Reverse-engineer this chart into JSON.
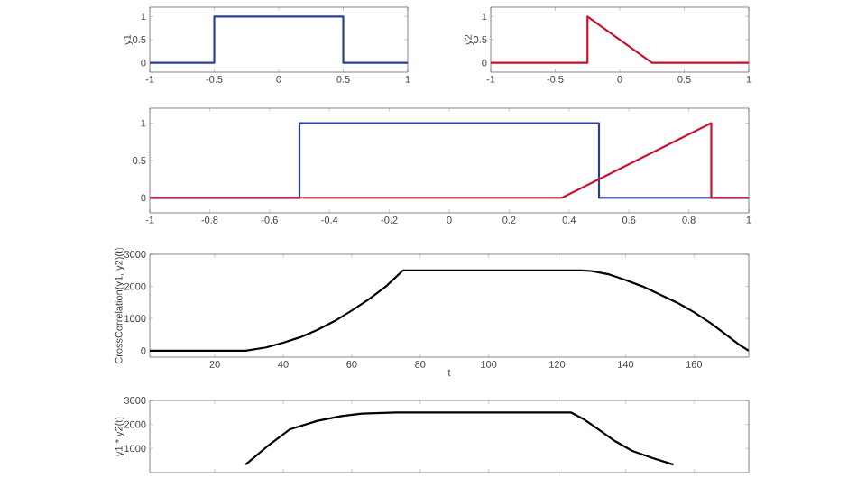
{
  "chart_data": [
    {
      "type": "line",
      "ylabel": "y1",
      "xlim": [
        -1,
        1
      ],
      "ylim": [
        -0.2,
        1.2
      ],
      "xticks": [
        -1,
        -0.5,
        0,
        0.5,
        1
      ],
      "yticks": [
        0,
        0.5,
        1
      ],
      "series": [
        {
          "color": "#2a3f9a",
          "x": [
            -1,
            -0.5,
            -0.5,
            0.5,
            0.5,
            1
          ],
          "values": [
            0,
            0,
            1,
            1,
            0,
            0
          ]
        }
      ]
    },
    {
      "type": "line",
      "ylabel": "y2",
      "xlim": [
        -1,
        1
      ],
      "ylim": [
        -0.2,
        1.2
      ],
      "xticks": [
        -1,
        -0.5,
        0,
        0.5,
        1
      ],
      "yticks": [
        0,
        0.5,
        1
      ],
      "series": [
        {
          "color": "#c4122f",
          "x": [
            -1,
            -0.25,
            -0.25,
            0.25,
            1
          ],
          "values": [
            0,
            0,
            1,
            0,
            0
          ]
        }
      ]
    },
    {
      "type": "line",
      "xlim": [
        -1,
        1
      ],
      "ylim": [
        -0.2,
        1.2
      ],
      "xticks": [
        -1,
        -0.8,
        -0.6,
        -0.4,
        -0.2,
        0,
        0.2,
        0.4,
        0.6,
        0.8,
        1
      ],
      "yticks": [
        0,
        0.5,
        1
      ],
      "series": [
        {
          "color": "#2a3f9a",
          "x": [
            -1,
            -0.5,
            -0.5,
            0.5,
            0.5,
            1
          ],
          "values": [
            0,
            0,
            1,
            1,
            0,
            0
          ]
        },
        {
          "color": "#c4122f",
          "x": [
            -1,
            0.375,
            0.875,
            0.875,
            1
          ],
          "values": [
            0,
            0,
            1,
            0,
            0
          ]
        }
      ]
    },
    {
      "type": "line",
      "xlabel": "t",
      "ylabel": "CrossCorrelation(y1, y2)(t)",
      "xlim": [
        1,
        176
      ],
      "ylim": [
        -200,
        3000
      ],
      "xticks": [
        20,
        40,
        60,
        80,
        100,
        120,
        140,
        160
      ],
      "yticks": [
        0,
        1000,
        2000,
        3000
      ],
      "series": [
        {
          "color": "#000000",
          "x": [
            1,
            29,
            35,
            40,
            45,
            50,
            55,
            60,
            65,
            70,
            75,
            127,
            130,
            135,
            140,
            145,
            150,
            155,
            160,
            165,
            170,
            173,
            176
          ],
          "values": [
            0,
            0,
            100,
            250,
            420,
            650,
            920,
            1250,
            1600,
            2000,
            2500,
            2500,
            2480,
            2380,
            2200,
            2000,
            1750,
            1500,
            1200,
            850,
            450,
            200,
            0
          ]
        }
      ]
    },
    {
      "type": "line",
      "ylabel": "y1 * y2(t)",
      "tick_labels": "y",
      "xlim": [
        1,
        176
      ],
      "ylim": [
        0,
        3000
      ],
      "xticks": [
        20,
        40,
        60,
        80,
        100,
        120,
        140,
        160
      ],
      "yticks": [
        1000,
        2000,
        3000
      ],
      "series": [
        {
          "color": "#000000",
          "x": [
            29,
            35,
            42,
            50,
            57,
            63,
            73,
            124,
            128,
            132,
            137,
            142,
            148,
            154
          ],
          "values": [
            330,
            1050,
            1800,
            2150,
            2350,
            2450,
            2500,
            2500,
            2200,
            1800,
            1300,
            900,
            600,
            330
          ]
        }
      ]
    }
  ]
}
